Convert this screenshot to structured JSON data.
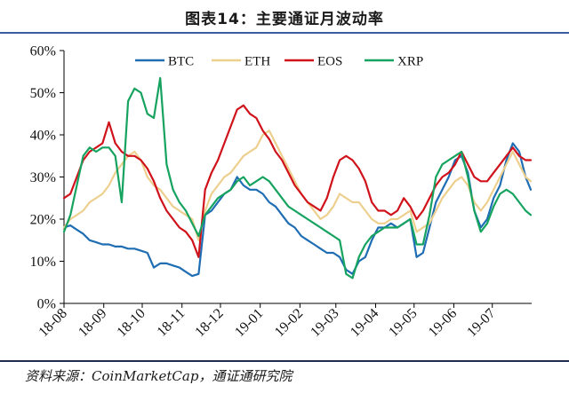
{
  "chart_data": {
    "type": "line",
    "title": "图表14：主要通证月波动率",
    "ylim": [
      0,
      60
    ],
    "xlim": [
      "2018-08-01",
      "2019-07-31"
    ],
    "grid": false,
    "legend": "top",
    "y_ticks": [
      {
        "value": 0,
        "label": "0%"
      },
      {
        "value": 10,
        "label": "10%"
      },
      {
        "value": 20,
        "label": "20%"
      },
      {
        "value": 30,
        "label": "30%"
      },
      {
        "value": 40,
        "label": "40%"
      },
      {
        "value": 50,
        "label": "50%"
      },
      {
        "value": 60,
        "label": "60%"
      }
    ],
    "x_ticks": [
      {
        "value": "2018-08-01",
        "label": "18-08"
      },
      {
        "value": "2018-09-01",
        "label": "18-09"
      },
      {
        "value": "2018-10-01",
        "label": "18-10"
      },
      {
        "value": "2018-11-01",
        "label": "18-11"
      },
      {
        "value": "2018-12-01",
        "label": "18-12"
      },
      {
        "value": "2019-01-01",
        "label": "19-01"
      },
      {
        "value": "2019-02-01",
        "label": "19-02"
      },
      {
        "value": "2019-03-01",
        "label": "19-03"
      },
      {
        "value": "2019-04-01",
        "label": "19-04"
      },
      {
        "value": "2019-05-01",
        "label": "19-05"
      },
      {
        "value": "2019-06-01",
        "label": "19-06"
      },
      {
        "value": "2019-07-01",
        "label": "19-07"
      }
    ],
    "x": [
      "2018-08-01",
      "2018-08-06",
      "2018-08-11",
      "2018-08-16",
      "2018-08-21",
      "2018-08-26",
      "2018-08-31",
      "2018-09-05",
      "2018-09-10",
      "2018-09-15",
      "2018-09-20",
      "2018-09-25",
      "2018-09-30",
      "2018-10-05",
      "2018-10-10",
      "2018-10-15",
      "2018-10-20",
      "2018-10-25",
      "2018-10-30",
      "2018-11-04",
      "2018-11-09",
      "2018-11-14",
      "2018-11-19",
      "2018-11-24",
      "2018-11-29",
      "2018-12-04",
      "2018-12-09",
      "2018-12-14",
      "2018-12-19",
      "2018-12-24",
      "2018-12-29",
      "2019-01-03",
      "2019-01-08",
      "2019-01-13",
      "2019-01-18",
      "2019-01-23",
      "2019-01-28",
      "2019-02-02",
      "2019-02-07",
      "2019-02-12",
      "2019-02-17",
      "2019-02-22",
      "2019-02-27",
      "2019-03-04",
      "2019-03-09",
      "2019-03-14",
      "2019-03-19",
      "2019-03-24",
      "2019-03-29",
      "2019-04-03",
      "2019-04-08",
      "2019-04-13",
      "2019-04-18",
      "2019-04-23",
      "2019-04-28",
      "2019-05-03",
      "2019-05-08",
      "2019-05-13",
      "2019-05-18",
      "2019-05-23",
      "2019-05-28",
      "2019-06-02",
      "2019-06-07",
      "2019-06-12",
      "2019-06-17",
      "2019-06-22",
      "2019-06-27",
      "2019-07-02",
      "2019-07-07",
      "2019-07-12",
      "2019-07-17",
      "2019-07-22",
      "2019-07-27",
      "2019-07-31"
    ],
    "series": [
      {
        "name": "BTC",
        "color": "#1f6db3",
        "values": [
          18,
          18.5,
          17.5,
          16.5,
          15,
          14.5,
          14,
          14,
          13.5,
          13.5,
          13,
          13,
          12.5,
          12,
          8.5,
          9.5,
          9.5,
          9,
          8.5,
          7.5,
          6.5,
          7,
          21,
          22,
          24,
          26,
          27,
          30,
          28,
          27,
          27,
          26,
          24,
          23,
          21,
          19,
          18,
          16,
          15,
          14,
          13,
          12,
          12,
          11,
          8,
          7,
          10,
          11,
          15,
          18,
          18,
          19,
          18,
          19,
          20,
          11,
          12,
          18,
          24,
          27,
          30,
          34,
          35,
          31,
          22,
          18,
          20,
          25,
          28,
          34,
          38,
          36,
          30,
          27
        ]
      },
      {
        "name": "ETH",
        "color": "#edcf8e",
        "values": [
          18,
          20,
          21,
          22,
          24,
          25,
          26,
          28,
          31,
          33,
          35,
          36,
          34,
          30,
          28,
          27,
          25,
          23,
          22,
          21,
          20,
          15,
          22,
          26,
          28,
          30,
          31,
          33,
          35,
          36,
          37,
          40,
          41,
          38,
          35,
          32,
          29,
          26,
          24,
          22,
          20,
          21,
          23,
          26,
          25,
          24,
          24,
          22,
          20,
          19,
          19,
          20,
          20,
          21,
          22,
          17,
          18,
          19,
          22,
          25,
          27,
          29,
          30,
          28,
          24,
          22,
          24,
          27,
          30,
          33,
          36,
          33,
          30,
          29
        ]
      },
      {
        "name": "EOS",
        "color": "#d0121b",
        "values": [
          25,
          26,
          30,
          34,
          36,
          37,
          38,
          43,
          38,
          36,
          35,
          35,
          34,
          32,
          29,
          25,
          22,
          20,
          18,
          17,
          15,
          11,
          27,
          31,
          34,
          38,
          42,
          46,
          47,
          45,
          44,
          41,
          39,
          36,
          34,
          31,
          28,
          26,
          24,
          23,
          22,
          25,
          30,
          34,
          35,
          34,
          32,
          29,
          24,
          22,
          22,
          21,
          22,
          25,
          23,
          20,
          22,
          25,
          28,
          30,
          31,
          33,
          36,
          33,
          30,
          29,
          29,
          31,
          33,
          35,
          37,
          35,
          34,
          34
        ]
      },
      {
        "name": "XRP",
        "color": "#16a35f",
        "values": [
          17,
          21,
          28,
          35,
          37,
          36,
          37,
          37,
          35,
          24,
          48,
          51,
          50,
          45,
          44,
          53.5,
          33,
          27,
          24,
          22,
          19,
          16,
          21,
          23,
          25,
          26,
          27,
          29,
          30,
          28,
          29,
          30,
          29,
          27,
          25,
          23,
          22,
          21,
          20,
          19,
          18,
          17,
          16,
          15,
          7,
          6,
          11,
          14,
          16,
          17,
          18,
          18,
          18,
          19,
          20,
          14,
          14,
          21,
          30,
          33,
          34,
          35,
          36,
          30,
          22,
          17,
          19,
          23,
          26,
          27,
          26,
          24,
          22,
          21
        ]
      }
    ]
  },
  "source": "资料来源：CoinMarketCap，通证通研究院"
}
